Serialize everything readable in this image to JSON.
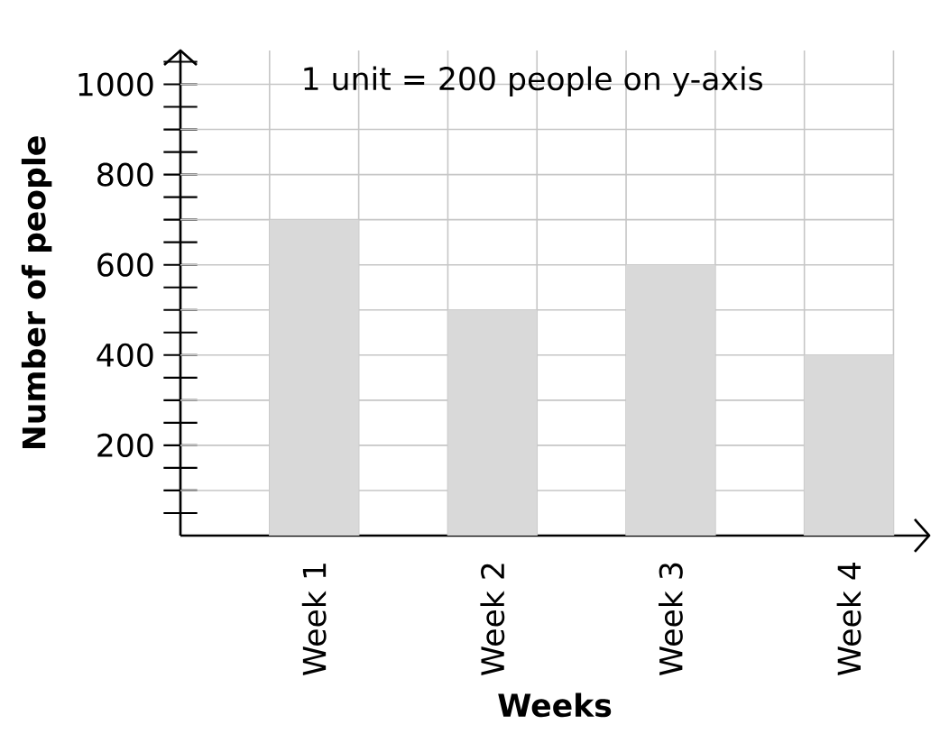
{
  "chart_data": {
    "type": "bar",
    "xlabel": "Weeks",
    "ylabel": "Number of people",
    "categories": [
      "Week 1",
      "Week 2",
      "Week 3",
      "Week 4"
    ],
    "values": [
      700,
      500,
      600,
      400
    ],
    "color": "#d9d9d9",
    "ylim": [
      0,
      1075
    ],
    "yticks": [
      {
        "value": 50,
        "label": null
      },
      {
        "value": 100,
        "label": null
      },
      {
        "value": 150,
        "label": null
      },
      200,
      {
        "value": 250,
        "label": null
      },
      {
        "value": 300,
        "label": null
      },
      {
        "value": 350,
        "label": null
      },
      400,
      {
        "value": 450,
        "label": null
      },
      {
        "value": 500,
        "label": null
      },
      {
        "value": 550,
        "label": null
      },
      600,
      {
        "value": 650,
        "label": null
      },
      {
        "value": 700,
        "label": null
      },
      {
        "value": 750,
        "label": null
      },
      800,
      {
        "value": 850,
        "label": null
      },
      {
        "value": 900,
        "label": null
      },
      {
        "value": 950,
        "label": null
      },
      1000,
      {
        "value": 1050,
        "label": null
      }
    ],
    "grid": true,
    "annotations": [
      "1 unit = 200 people on y-axis"
    ]
  }
}
